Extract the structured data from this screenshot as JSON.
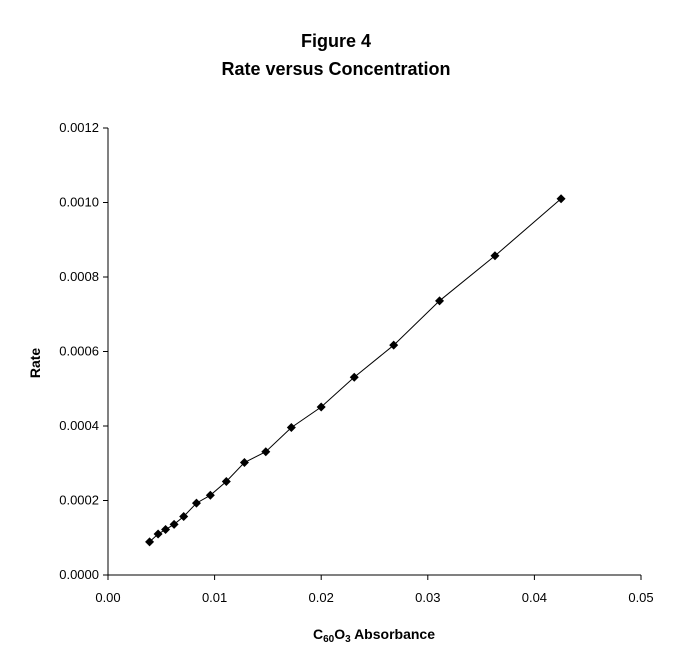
{
  "chart_data": {
    "type": "line",
    "title_line1": "Figure 4",
    "title_line2": "Rate versus Concentration",
    "xlabel": {
      "main": "C",
      "sub1": "60",
      "mid": "O",
      "sub2": "3",
      "tail": " Absorbance"
    },
    "ylabel": "Rate",
    "xlim": [
      0,
      0.05
    ],
    "ylim": [
      0,
      0.0012
    ],
    "x_ticks": [
      0,
      0.01,
      0.02,
      0.03,
      0.04,
      0.05
    ],
    "x_tick_labels": [
      "0.00",
      "0.01",
      "0.02",
      "0.03",
      "0.04",
      "0.05"
    ],
    "y_ticks": [
      0,
      0.0002,
      0.0004,
      0.0006,
      0.0008,
      0.001,
      0.0012
    ],
    "y_tick_labels": [
      "0.0000",
      "0.0002",
      "0.0004",
      "0.0006",
      "0.0008",
      "0.0010",
      "0.0012"
    ],
    "grid": false,
    "legend": "none",
    "marker": "diamond",
    "line_color": "#000000",
    "series": [
      {
        "x": [
          0.0039,
          0.0047,
          0.0054,
          0.0062,
          0.0071,
          0.0083,
          0.0096,
          0.0111,
          0.0128,
          0.0148,
          0.0172,
          0.02,
          0.0231,
          0.0268,
          0.0311,
          0.0363,
          0.0425
        ],
        "y": [
          8.9e-05,
          0.00011,
          0.000122,
          0.000136,
          0.000157,
          0.000193,
          0.000214,
          0.000251,
          0.000302,
          0.000331,
          0.000396,
          0.000451,
          0.000531,
          0.000617,
          0.000736,
          0.000857,
          0.00101
        ]
      }
    ]
  }
}
